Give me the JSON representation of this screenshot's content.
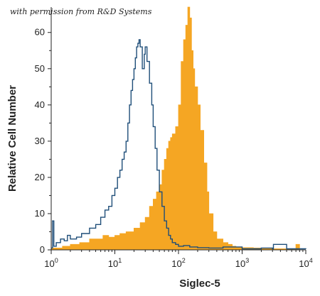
{
  "credit": "with permission from R&D Systems",
  "chart_data": {
    "type": "area",
    "xlabel": "Siglec-5",
    "ylabel": "Relative Cell Number",
    "xscale": "log",
    "xlim": [
      1,
      10000
    ],
    "ylim": [
      0,
      67
    ],
    "x_ticks": [
      {
        "value": 1,
        "base": "10",
        "exp": "0"
      },
      {
        "value": 10,
        "base": "10",
        "exp": "1"
      },
      {
        "value": 100,
        "base": "10",
        "exp": "2"
      },
      {
        "value": 1000,
        "base": "10",
        "exp": "3"
      },
      {
        "value": 10000,
        "base": "10",
        "exp": "4"
      }
    ],
    "y_ticks": [
      {
        "value": 0,
        "label": "0"
      },
      {
        "value": 10,
        "label": "10"
      },
      {
        "value": 20,
        "label": "20"
      },
      {
        "value": 30,
        "label": "30"
      },
      {
        "value": 40,
        "label": "40"
      },
      {
        "value": 50,
        "label": "50"
      },
      {
        "value": 60,
        "label": "60"
      }
    ],
    "series": [
      {
        "style": "filled",
        "color": "#f5a623",
        "x": [
          1,
          1.5,
          2,
          2.8,
          4,
          5,
          6.5,
          8,
          10,
          12,
          15,
          20,
          25,
          30,
          35,
          40,
          45,
          50,
          55,
          60,
          65,
          70,
          75,
          80,
          90,
          100,
          110,
          120,
          130,
          140,
          150,
          160,
          170,
          180,
          200,
          220,
          250,
          280,
          300,
          350,
          400,
          500,
          600,
          700,
          800,
          1000,
          1500,
          2000,
          3000,
          5000,
          7000,
          8000
        ],
        "y": [
          0.5,
          1,
          1.5,
          2,
          3,
          3,
          4,
          3.5,
          4,
          4.5,
          5,
          6,
          7.5,
          9,
          12,
          14,
          16,
          18,
          22,
          25,
          28,
          30,
          31,
          32,
          34,
          40,
          52,
          58,
          62,
          67,
          64,
          55,
          50,
          45,
          40,
          33,
          24,
          16,
          10,
          5,
          3,
          2,
          1.5,
          1,
          0.8,
          0.6,
          0.5,
          0.4,
          0.3,
          0.3,
          1.5,
          0.3
        ]
      },
      {
        "style": "outline",
        "color": "#1f4e79",
        "x": [
          1,
          1.05,
          1.1,
          1.2,
          1.4,
          1.6,
          1.8,
          2,
          2.5,
          3,
          4,
          5,
          6,
          7,
          8,
          9,
          10,
          11,
          12,
          13,
          14,
          15,
          16,
          17,
          18,
          19,
          20,
          21,
          22,
          23,
          24,
          25,
          27,
          29,
          30,
          32,
          35,
          38,
          40,
          43,
          46,
          50,
          55,
          60,
          65,
          70,
          75,
          80,
          90,
          100,
          120,
          150,
          200,
          300,
          500,
          1000,
          2000,
          3000,
          3100,
          5000,
          10000
        ],
        "y": [
          0.5,
          8,
          1,
          2,
          3,
          2.5,
          4,
          3,
          3.5,
          4.5,
          6,
          7,
          9,
          11,
          12,
          15,
          17,
          20,
          22,
          25,
          27,
          30,
          35,
          40,
          44,
          47,
          50,
          53,
          56,
          57,
          58,
          56,
          50,
          54,
          56,
          52,
          46,
          40,
          34,
          28,
          22,
          16,
          12,
          8,
          6,
          4,
          3,
          2,
          1.5,
          1,
          1.2,
          0.8,
          0.6,
          0.5,
          0.8,
          0.3,
          0.5,
          0.3,
          1.5,
          0.3,
          0.2
        ]
      }
    ]
  }
}
